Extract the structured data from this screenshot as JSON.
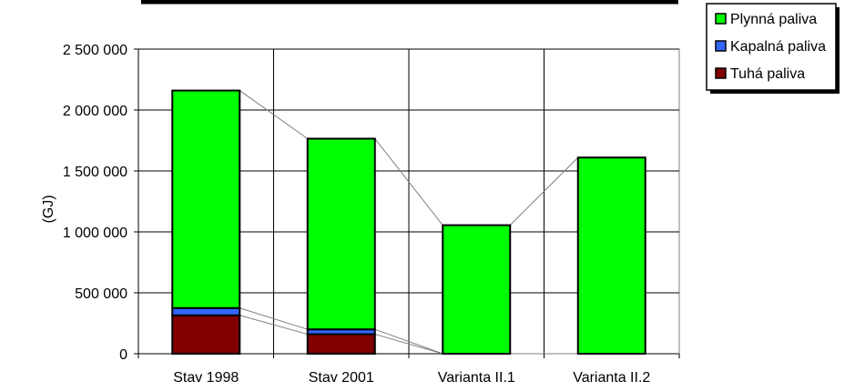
{
  "chart_data": {
    "type": "bar",
    "stacked": true,
    "categories": [
      "Stav 1998",
      "Stav 2001",
      "Varianta II.1",
      "Varianta II.2"
    ],
    "series": [
      {
        "name": "Tuhá paliva",
        "values": [
          315000,
          160000,
          0,
          0
        ],
        "color": "#800000"
      },
      {
        "name": "Kapalná paliva",
        "values": [
          60000,
          40000,
          0,
          0
        ],
        "color": "#3366ff"
      },
      {
        "name": "Plynná paliva",
        "values": [
          1785000,
          1565000,
          1055000,
          1610000
        ],
        "color": "#00ff00"
      }
    ],
    "legend_order": [
      "Plynná paliva",
      "Kapalná paliva",
      "Tuhá paliva"
    ],
    "ylabel": "(GJ)",
    "xlabel": "",
    "ylim": [
      0,
      2500000
    ],
    "yticks": [
      0,
      500000,
      1000000,
      1500000,
      2000000,
      2500000
    ],
    "ytick_labels": [
      "0",
      "500 000",
      "1 000 000",
      "1 500 000",
      "2 000 000",
      "2 500 000"
    ],
    "grid": true,
    "legend_position": "top-right",
    "series_lines": true
  }
}
